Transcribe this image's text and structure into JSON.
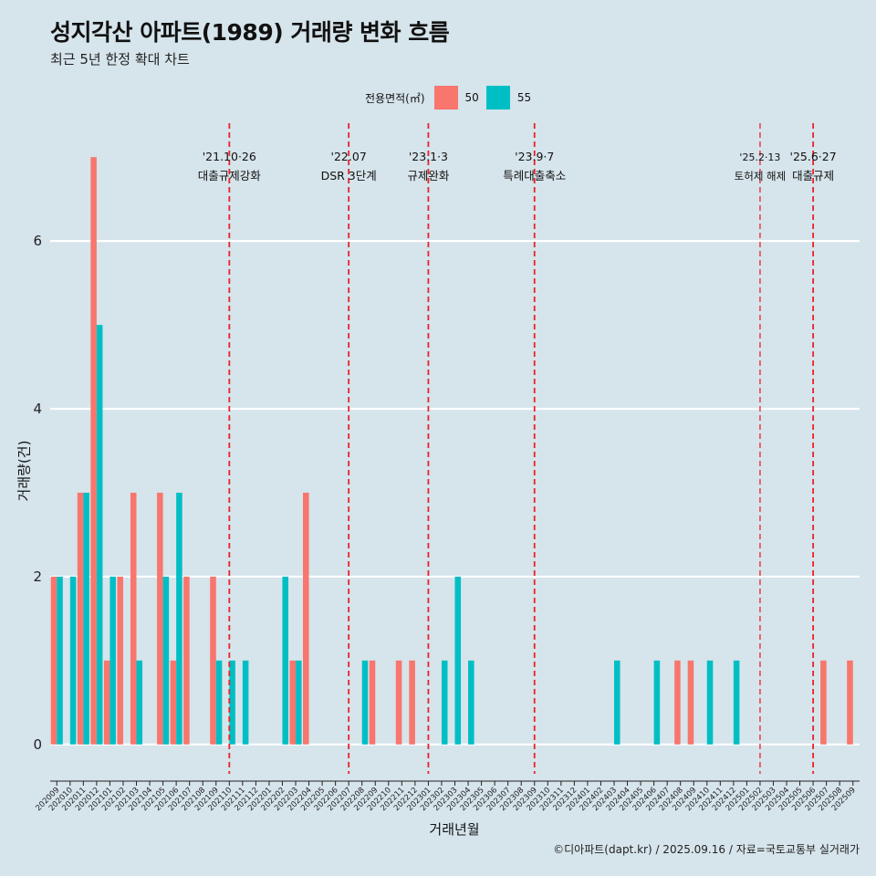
{
  "header": {
    "title": "성지각산 아파트(1989) 거래량 변화 흐름",
    "subtitle": "최근 5년 한정 확대 차트"
  },
  "legend": {
    "title": "전용면적(㎡)",
    "items": [
      {
        "label": "50",
        "color": "#f8766d"
      },
      {
        "label": "55",
        "color": "#00bfc4"
      }
    ]
  },
  "caption": "©디아파트(dapt.kr) / 2025.09.16 / 자료=국토교통부 실거래가",
  "chart_data": {
    "type": "bar",
    "xlabel": "거래년월",
    "ylabel": "거래량(건)",
    "ylim": [
      -0.35,
      7.35
    ],
    "yticks": [
      0,
      2,
      4,
      6
    ],
    "grid": true,
    "legend_position": "top",
    "categories": [
      "202009",
      "202010",
      "202011",
      "202012",
      "202101",
      "202102",
      "202103",
      "202104",
      "202105",
      "202106",
      "202107",
      "202108",
      "202109",
      "202110",
      "202111",
      "202112",
      "202201",
      "202202",
      "202203",
      "202204",
      "202205",
      "202206",
      "202207",
      "202208",
      "202209",
      "202210",
      "202211",
      "202212",
      "202301",
      "202302",
      "202303",
      "202304",
      "202305",
      "202306",
      "202307",
      "202308",
      "202309",
      "202310",
      "202311",
      "202312",
      "202401",
      "202402",
      "202403",
      "202404",
      "202405",
      "202406",
      "202407",
      "202408",
      "202409",
      "202410",
      "202411",
      "202412",
      "202501",
      "202502",
      "202503",
      "202504",
      "202505",
      "202506",
      "202507",
      "202508",
      "202509"
    ],
    "series": [
      {
        "name": "50",
        "color": "#f8766d",
        "values": [
          2,
          0,
          3,
          7,
          1,
          2,
          3,
          0,
          3,
          1,
          2,
          0,
          2,
          0,
          0,
          0,
          0,
          0,
          1,
          3,
          0,
          0,
          0,
          0,
          1,
          0,
          1,
          1,
          0,
          0,
          0,
          0,
          0,
          0,
          0,
          0,
          0,
          0,
          0,
          0,
          0,
          0,
          0,
          0,
          0,
          0,
          0,
          1,
          1,
          0,
          0,
          0,
          0,
          0,
          0,
          0,
          0,
          0,
          1,
          0,
          1
        ]
      },
      {
        "name": "55",
        "color": "#00bfc4",
        "values": [
          2,
          2,
          3,
          5,
          2,
          0,
          1,
          0,
          2,
          3,
          0,
          0,
          1,
          1,
          1,
          0,
          0,
          2,
          1,
          0,
          0,
          0,
          0,
          1,
          0,
          0,
          0,
          0,
          0,
          1,
          2,
          1,
          0,
          0,
          0,
          0,
          0,
          0,
          0,
          0,
          0,
          0,
          1,
          0,
          0,
          1,
          0,
          0,
          0,
          1,
          0,
          1,
          0,
          0,
          0,
          0,
          0,
          0,
          0,
          0,
          0
        ]
      }
    ],
    "annotations": [
      {
        "at": "202110",
        "date": "'21.10·26",
        "label": "대출규제강화"
      },
      {
        "at": "202207",
        "date": "'22.07",
        "label": "DSR 3단계"
      },
      {
        "at": "202301",
        "date": "'23.1·3",
        "label": "규제완화"
      },
      {
        "at": "202309",
        "date": "'23.9·7",
        "label": "특례대출축소"
      },
      {
        "at": "202502",
        "date": "'25.2·13",
        "label": "토허제 해제"
      },
      {
        "at": "202506",
        "date": "'25.6·27",
        "label": "대출규제"
      }
    ]
  }
}
